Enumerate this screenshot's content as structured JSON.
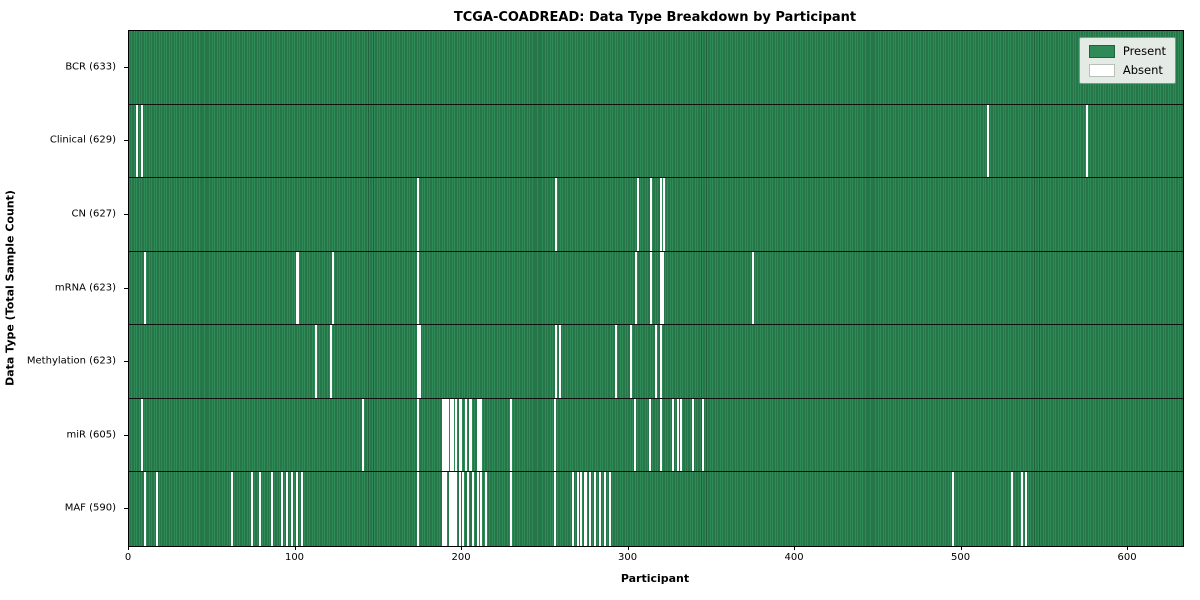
{
  "chart_data": {
    "type": "heatmap",
    "title": "TCGA-COADREAD: Data Type Breakdown by Participant",
    "xlabel": "Participant",
    "ylabel": "Data Type (Total Sample Count)",
    "x_range": [
      0,
      633
    ],
    "x_ticks": [
      0,
      100,
      200,
      300,
      400,
      500,
      600
    ],
    "n_participants": 633,
    "grid": false,
    "legend_position": "upper right",
    "colors": {
      "present": "#2E8B57",
      "present_edge": "#20623E",
      "absent": "#ffffff"
    },
    "legend": [
      {
        "label": "Present",
        "color": "#2E8B57"
      },
      {
        "label": "Absent",
        "color": "#ffffff"
      }
    ],
    "rows": [
      {
        "label": "BCR (633)",
        "name": "bcr",
        "total_samples": 633,
        "absent_participants": []
      },
      {
        "label": "Clinical (629)",
        "name": "clinical",
        "total_samples": 629,
        "absent_participants": [
          4,
          7,
          515,
          575
        ]
      },
      {
        "label": "CN (627)",
        "name": "cn",
        "total_samples": 627,
        "absent_participants": [
          173,
          256,
          305,
          313,
          319,
          321
        ]
      },
      {
        "label": "mRNA (623)",
        "name": "mrna",
        "total_samples": 623,
        "absent_participants": [
          9,
          100,
          101,
          122,
          173,
          304,
          313,
          319,
          320,
          374
        ]
      },
      {
        "label": "Methylation (623)",
        "name": "methylation",
        "total_samples": 623,
        "absent_participants": [
          112,
          121,
          173,
          174,
          256,
          258,
          292,
          301,
          316,
          319
        ]
      },
      {
        "label": "miR (605)",
        "name": "mir",
        "total_samples": 605,
        "absent_participants": [
          7,
          140,
          173,
          188,
          189,
          190,
          191,
          193,
          194,
          196,
          198,
          199,
          202,
          204,
          205,
          209,
          210,
          211,
          229,
          255,
          303,
          312,
          319,
          326,
          329,
          331,
          338,
          344
        ]
      },
      {
        "label": "MAF (590)",
        "name": "maf",
        "total_samples": 590,
        "absent_participants": [
          9,
          16,
          61,
          73,
          78,
          85,
          91,
          94,
          97,
          100,
          103,
          173,
          188,
          189,
          190,
          192,
          193,
          194,
          195,
          196,
          198,
          200,
          203,
          206,
          209,
          211,
          214,
          229,
          255,
          266,
          269,
          271,
          273,
          274,
          276,
          279,
          282,
          285,
          288,
          494,
          530,
          536,
          538
        ]
      }
    ]
  }
}
